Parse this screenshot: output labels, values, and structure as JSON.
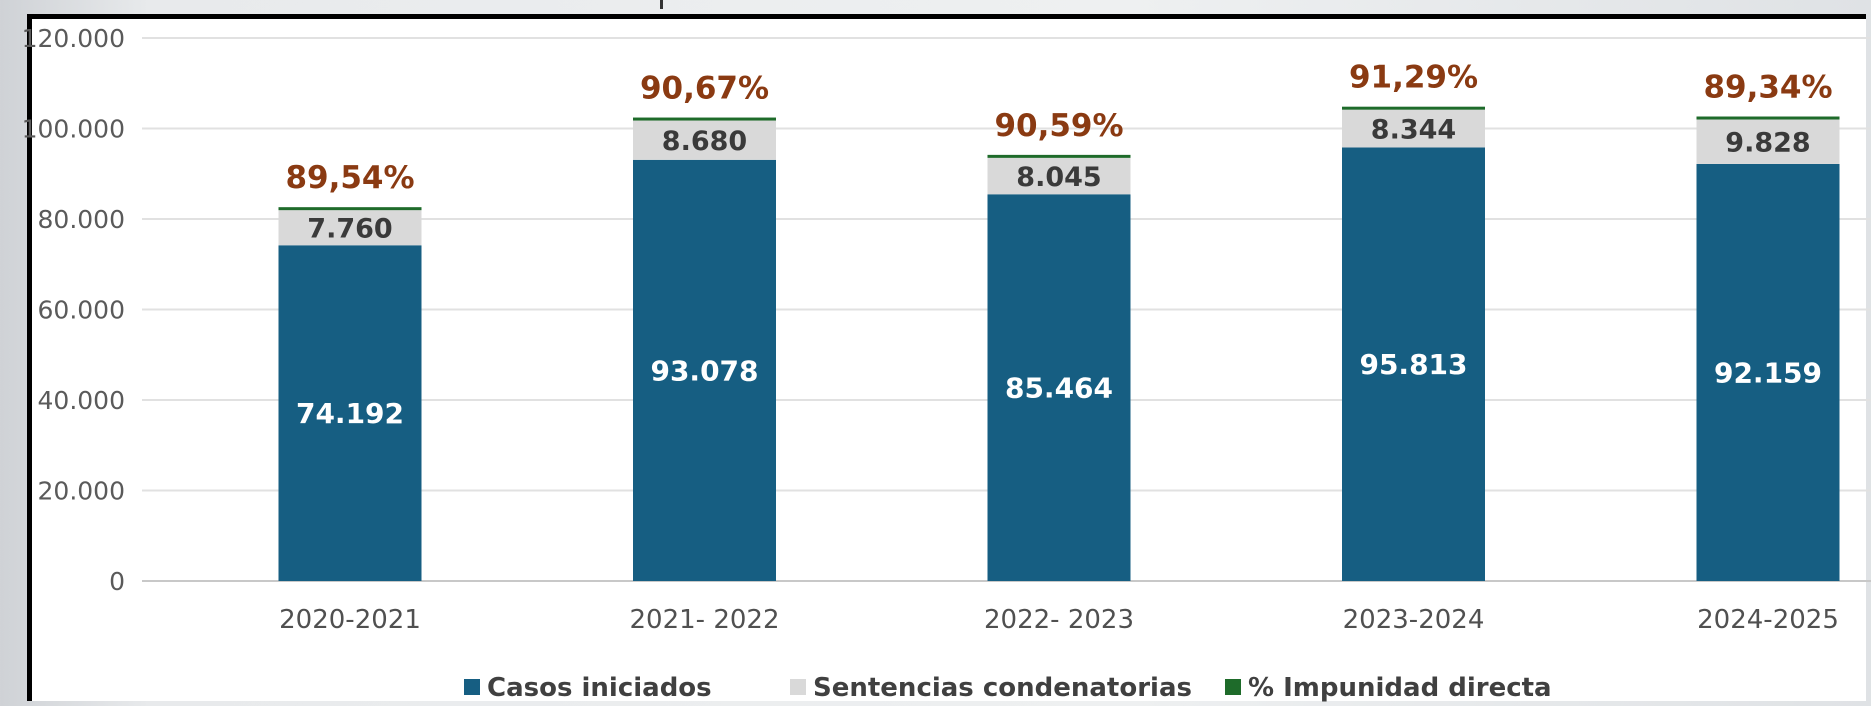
{
  "chart_data": {
    "type": "bar",
    "stacked": true,
    "title": "",
    "xlabel": "",
    "ylabel": "",
    "ylim": [
      0,
      120000
    ],
    "yticks": [
      0,
      20000,
      40000,
      60000,
      80000,
      100000,
      120000
    ],
    "ytick_labels": [
      "0",
      "20.000",
      "40.000",
      "60.000",
      "80.000",
      "100.000",
      "120.000"
    ],
    "grid": true,
    "legend_position": "bottom",
    "categories": [
      "2020-2021",
      "2021- 2022",
      "2022- 2023",
      "2023-2024",
      "2024-2025"
    ],
    "series": [
      {
        "name": "Casos iniciados",
        "color": "#165e82",
        "values": [
          74192,
          93078,
          85464,
          95813,
          92159
        ],
        "labels": [
          "74.192",
          "93.078",
          "85.464",
          "95.813",
          "92.159"
        ]
      },
      {
        "name": "Sentencias condenatorias",
        "color": "#d9d9d9",
        "values": [
          7760,
          8680,
          8045,
          8344,
          9828
        ],
        "labels": [
          "7.760",
          "8.680",
          "8.045",
          "8.344",
          "9.828"
        ]
      },
      {
        "name": "% Impunidad directa",
        "color": "#1e6b2a",
        "values": [
          89.54,
          90.67,
          90.59,
          91.29,
          89.34
        ],
        "labels": [
          "89,54%",
          "90,67%",
          "90,59%",
          "91,29%",
          "89,34%"
        ]
      }
    ]
  }
}
